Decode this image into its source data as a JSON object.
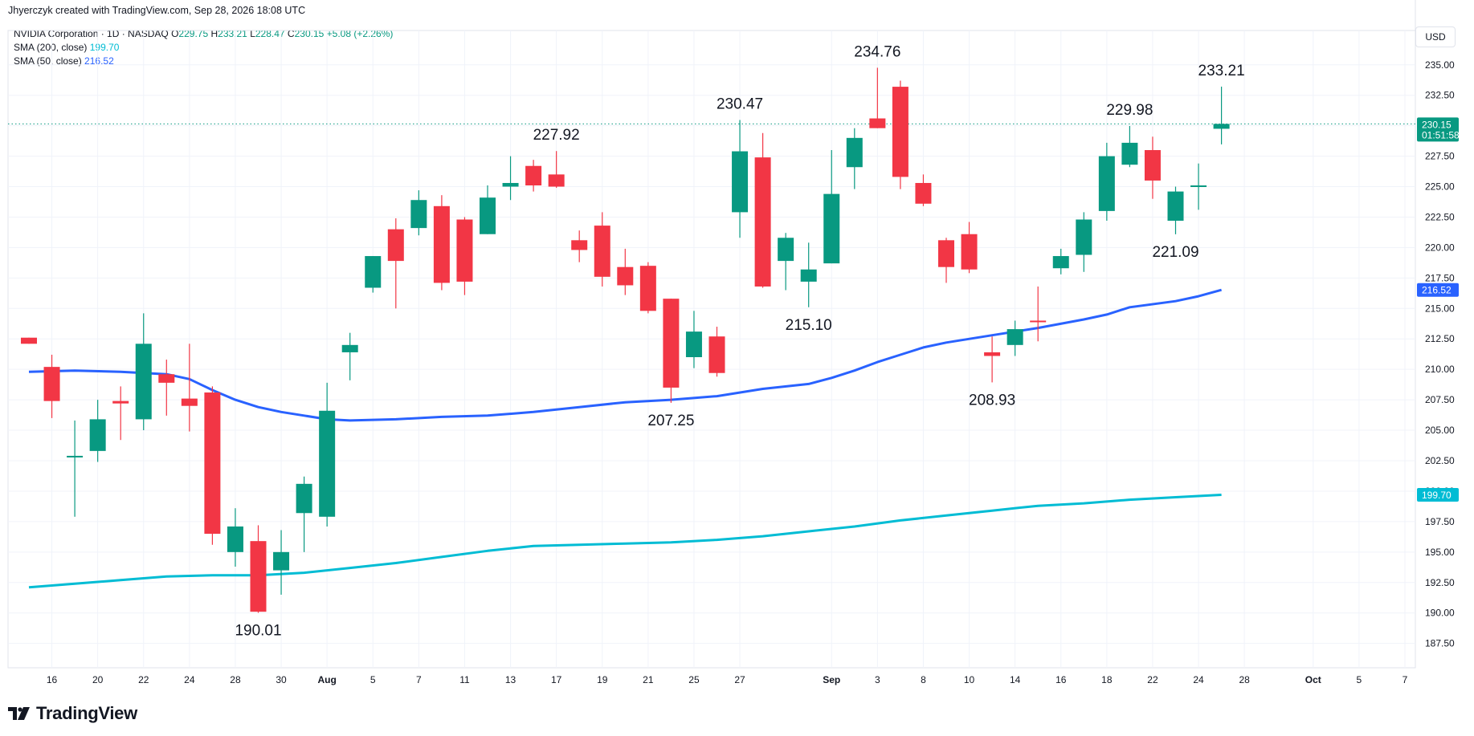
{
  "header": {
    "created_by": "Jhyerczyk created with TradingView.com, Sep 28, 2026 18:08 UTC"
  },
  "legend": {
    "symbol": "NVIDIA Corporation · 1D · NASDAQ",
    "o_label": "O",
    "o_value": "229.75",
    "h_label": "H",
    "h_value": "233.21",
    "l_label": "L",
    "l_value": "228.47",
    "c_label": "C",
    "c_value": "230.15",
    "change": "+5.08 (+2.26%)",
    "sma200_label": "SMA (200, close)",
    "sma200_value": "199.70",
    "sma50_label": "SMA (50, close)",
    "sma50_value": "216.52"
  },
  "currency": "USD",
  "footer": {
    "brand": "TradingView"
  },
  "colors": {
    "up": "#089981",
    "down": "#f23645",
    "sma50": "#2962ff",
    "sma200": "#00bcd4"
  },
  "chart_data": {
    "type": "candlestick",
    "ylim": [
      185.5,
      236.5
    ],
    "y_ticks": [
      "187.50",
      "190.00",
      "192.50",
      "195.00",
      "197.50",
      "200.00",
      "202.50",
      "205.00",
      "207.50",
      "210.00",
      "212.50",
      "215.00",
      "217.50",
      "220.00",
      "222.50",
      "225.00",
      "227.50",
      "230.00",
      "232.50",
      "235.00"
    ],
    "x_ticks": [
      {
        "label": "16",
        "i": 1
      },
      {
        "label": "20",
        "i": 3
      },
      {
        "label": "22",
        "i": 5
      },
      {
        "label": "24",
        "i": 7
      },
      {
        "label": "28",
        "i": 9
      },
      {
        "label": "30",
        "i": 11
      },
      {
        "label": "Aug",
        "i": 13
      },
      {
        "label": "5",
        "i": 15
      },
      {
        "label": "7",
        "i": 17
      },
      {
        "label": "11",
        "i": 19
      },
      {
        "label": "13",
        "i": 21
      },
      {
        "label": "17",
        "i": 23
      },
      {
        "label": "19",
        "i": 25
      },
      {
        "label": "21",
        "i": 27
      },
      {
        "label": "25",
        "i": 29
      },
      {
        "label": "27",
        "i": 31
      },
      {
        "label": "Sep",
        "i": 35
      },
      {
        "label": "3",
        "i": 37
      },
      {
        "label": "8",
        "i": 39
      },
      {
        "label": "10",
        "i": 41
      },
      {
        "label": "14",
        "i": 43
      },
      {
        "label": "16",
        "i": 45
      },
      {
        "label": "18",
        "i": 47
      },
      {
        "label": "22",
        "i": 49
      },
      {
        "label": "24",
        "i": 51
      },
      {
        "label": "28",
        "i": 53
      },
      {
        "label": "Oct",
        "i": 56
      },
      {
        "label": "5",
        "i": 58
      },
      {
        "label": "7",
        "i": 60
      }
    ],
    "candles": [
      {
        "i": 0,
        "o": 212.6,
        "h": 212.6,
        "l": 212.1,
        "c": 212.1
      },
      {
        "i": 1,
        "o": 210.2,
        "h": 211.2,
        "l": 206.0,
        "c": 207.4
      },
      {
        "i": 2,
        "o": 202.9,
        "h": 205.8,
        "l": 197.9,
        "c": 202.9
      },
      {
        "i": 3,
        "o": 203.3,
        "h": 207.5,
        "l": 202.4,
        "c": 205.9
      },
      {
        "i": 4,
        "o": 207.4,
        "h": 208.6,
        "l": 204.2,
        "c": 207.2
      },
      {
        "i": 5,
        "o": 205.9,
        "h": 214.6,
        "l": 205.0,
        "c": 212.1
      },
      {
        "i": 6,
        "o": 209.6,
        "h": 210.8,
        "l": 206.2,
        "c": 208.9
      },
      {
        "i": 7,
        "o": 207.6,
        "h": 212.1,
        "l": 204.9,
        "c": 207.0
      },
      {
        "i": 8,
        "o": 208.1,
        "h": 208.6,
        "l": 195.6,
        "c": 196.5
      },
      {
        "i": 9,
        "o": 195.0,
        "h": 198.6,
        "l": 193.8,
        "c": 197.1
      },
      {
        "i": 10,
        "o": 195.9,
        "h": 197.2,
        "l": 190.01,
        "c": 190.1
      },
      {
        "i": 11,
        "o": 193.5,
        "h": 196.8,
        "l": 191.5,
        "c": 195.0
      },
      {
        "i": 12,
        "o": 198.2,
        "h": 201.2,
        "l": 195.0,
        "c": 200.6
      },
      {
        "i": 13,
        "o": 197.9,
        "h": 208.9,
        "l": 197.1,
        "c": 206.6
      },
      {
        "i": 14,
        "o": 211.4,
        "h": 213.0,
        "l": 209.1,
        "c": 212.0
      },
      {
        "i": 15,
        "o": 216.7,
        "h": 219.3,
        "l": 216.3,
        "c": 219.3
      },
      {
        "i": 16,
        "o": 221.5,
        "h": 222.4,
        "l": 215.0,
        "c": 218.9
      },
      {
        "i": 17,
        "o": 221.6,
        "h": 224.7,
        "l": 221.0,
        "c": 223.9
      },
      {
        "i": 18,
        "o": 223.4,
        "h": 224.3,
        "l": 216.5,
        "c": 217.1
      },
      {
        "i": 19,
        "o": 222.3,
        "h": 222.5,
        "l": 216.1,
        "c": 217.2
      },
      {
        "i": 20,
        "o": 221.1,
        "h": 225.1,
        "l": 221.1,
        "c": 224.1
      },
      {
        "i": 21,
        "o": 225.0,
        "h": 227.5,
        "l": 223.9,
        "c": 225.3
      },
      {
        "i": 22,
        "o": 226.7,
        "h": 227.2,
        "l": 224.6,
        "c": 225.1
      },
      {
        "i": 23,
        "o": 226.0,
        "h": 227.92,
        "l": 224.9,
        "c": 225.0
      },
      {
        "i": 24,
        "o": 220.6,
        "h": 221.4,
        "l": 218.8,
        "c": 219.8
      },
      {
        "i": 25,
        "o": 221.8,
        "h": 222.9,
        "l": 216.8,
        "c": 217.6
      },
      {
        "i": 26,
        "o": 218.4,
        "h": 219.9,
        "l": 216.1,
        "c": 216.9
      },
      {
        "i": 27,
        "o": 218.5,
        "h": 218.8,
        "l": 214.6,
        "c": 214.8
      },
      {
        "i": 28,
        "o": 215.8,
        "h": 215.8,
        "l": 207.25,
        "c": 208.5
      },
      {
        "i": 29,
        "o": 211.0,
        "h": 214.8,
        "l": 210.1,
        "c": 213.1
      },
      {
        "i": 30,
        "o": 212.7,
        "h": 213.5,
        "l": 209.4,
        "c": 209.7
      },
      {
        "i": 31,
        "o": 222.9,
        "h": 230.47,
        "l": 220.8,
        "c": 227.9
      },
      {
        "i": 32,
        "o": 227.4,
        "h": 229.4,
        "l": 216.7,
        "c": 216.8
      },
      {
        "i": 33,
        "o": 218.9,
        "h": 221.2,
        "l": 216.5,
        "c": 220.8
      },
      {
        "i": 34,
        "o": 217.2,
        "h": 220.4,
        "l": 215.1,
        "c": 218.2
      },
      {
        "i": 35,
        "o": 218.7,
        "h": 228.0,
        "l": 218.7,
        "c": 224.4
      },
      {
        "i": 36,
        "o": 226.6,
        "h": 229.8,
        "l": 224.8,
        "c": 229.0
      },
      {
        "i": 37,
        "o": 230.6,
        "h": 234.76,
        "l": 229.8,
        "c": 229.8
      },
      {
        "i": 38,
        "o": 233.2,
        "h": 233.7,
        "l": 224.8,
        "c": 225.8
      },
      {
        "i": 39,
        "o": 225.3,
        "h": 226.0,
        "l": 223.4,
        "c": 223.6
      },
      {
        "i": 40,
        "o": 220.6,
        "h": 220.8,
        "l": 217.1,
        "c": 218.4
      },
      {
        "i": 41,
        "o": 221.1,
        "h": 222.1,
        "l": 217.9,
        "c": 218.2
      },
      {
        "i": 42,
        "o": 211.4,
        "h": 212.7,
        "l": 208.93,
        "c": 211.1
      },
      {
        "i": 43,
        "o": 212.0,
        "h": 214.0,
        "l": 211.1,
        "c": 213.3
      },
      {
        "i": 44,
        "o": 214.0,
        "h": 216.8,
        "l": 212.3,
        "c": 213.9
      },
      {
        "i": 45,
        "o": 218.3,
        "h": 219.9,
        "l": 217.8,
        "c": 219.3
      },
      {
        "i": 46,
        "o": 219.4,
        "h": 222.9,
        "l": 218.0,
        "c": 222.3
      },
      {
        "i": 47,
        "o": 223.0,
        "h": 228.6,
        "l": 222.2,
        "c": 227.5
      },
      {
        "i": 48,
        "o": 226.8,
        "h": 229.98,
        "l": 226.6,
        "c": 228.6
      },
      {
        "i": 49,
        "o": 228.0,
        "h": 229.1,
        "l": 224.0,
        "c": 225.5
      },
      {
        "i": 50,
        "o": 222.2,
        "h": 225.0,
        "l": 221.09,
        "c": 224.6
      },
      {
        "i": 51,
        "o": 225.0,
        "h": 226.9,
        "l": 223.1,
        "c": 225.1
      },
      {
        "i": 52,
        "o": 229.75,
        "h": 233.21,
        "l": 228.47,
        "c": 230.15
      }
    ],
    "sma50": [
      {
        "i": 0,
        "v": 209.8
      },
      {
        "i": 2,
        "v": 209.9
      },
      {
        "i": 4,
        "v": 209.8
      },
      {
        "i": 6,
        "v": 209.6
      },
      {
        "i": 7,
        "v": 209.2
      },
      {
        "i": 8,
        "v": 208.3
      },
      {
        "i": 9,
        "v": 207.5
      },
      {
        "i": 10,
        "v": 206.9
      },
      {
        "i": 11,
        "v": 206.5
      },
      {
        "i": 12,
        "v": 206.2
      },
      {
        "i": 13,
        "v": 205.9
      },
      {
        "i": 14,
        "v": 205.8
      },
      {
        "i": 16,
        "v": 205.9
      },
      {
        "i": 18,
        "v": 206.1
      },
      {
        "i": 20,
        "v": 206.2
      },
      {
        "i": 22,
        "v": 206.5
      },
      {
        "i": 24,
        "v": 206.9
      },
      {
        "i": 26,
        "v": 207.3
      },
      {
        "i": 28,
        "v": 207.5
      },
      {
        "i": 30,
        "v": 207.8
      },
      {
        "i": 32,
        "v": 208.4
      },
      {
        "i": 34,
        "v": 208.8
      },
      {
        "i": 35,
        "v": 209.3
      },
      {
        "i": 36,
        "v": 209.9
      },
      {
        "i": 37,
        "v": 210.6
      },
      {
        "i": 38,
        "v": 211.2
      },
      {
        "i": 39,
        "v": 211.8
      },
      {
        "i": 40,
        "v": 212.2
      },
      {
        "i": 42,
        "v": 212.8
      },
      {
        "i": 44,
        "v": 213.4
      },
      {
        "i": 46,
        "v": 214.1
      },
      {
        "i": 47,
        "v": 214.5
      },
      {
        "i": 48,
        "v": 215.1
      },
      {
        "i": 50,
        "v": 215.6
      },
      {
        "i": 51,
        "v": 216.0
      },
      {
        "i": 52,
        "v": 216.52
      }
    ],
    "sma200": [
      {
        "i": 0,
        "v": 192.1
      },
      {
        "i": 2,
        "v": 192.4
      },
      {
        "i": 4,
        "v": 192.7
      },
      {
        "i": 6,
        "v": 193.0
      },
      {
        "i": 8,
        "v": 193.1
      },
      {
        "i": 10,
        "v": 193.1
      },
      {
        "i": 12,
        "v": 193.3
      },
      {
        "i": 14,
        "v": 193.7
      },
      {
        "i": 16,
        "v": 194.1
      },
      {
        "i": 18,
        "v": 194.6
      },
      {
        "i": 20,
        "v": 195.1
      },
      {
        "i": 22,
        "v": 195.5
      },
      {
        "i": 24,
        "v": 195.6
      },
      {
        "i": 26,
        "v": 195.7
      },
      {
        "i": 28,
        "v": 195.8
      },
      {
        "i": 30,
        "v": 196.0
      },
      {
        "i": 32,
        "v": 196.3
      },
      {
        "i": 34,
        "v": 196.7
      },
      {
        "i": 36,
        "v": 197.1
      },
      {
        "i": 38,
        "v": 197.6
      },
      {
        "i": 40,
        "v": 198.0
      },
      {
        "i": 42,
        "v": 198.4
      },
      {
        "i": 44,
        "v": 198.8
      },
      {
        "i": 46,
        "v": 199.0
      },
      {
        "i": 48,
        "v": 199.3
      },
      {
        "i": 50,
        "v": 199.5
      },
      {
        "i": 52,
        "v": 199.7
      }
    ],
    "price_labels": [
      {
        "label": "230.15",
        "sub": "01:51:58",
        "value": 230.15,
        "color": "#089981"
      },
      {
        "label": "216.52",
        "value": 216.52,
        "color": "#2962ff"
      },
      {
        "label": "199.70",
        "value": 199.7,
        "color": "#00bcd4"
      }
    ],
    "annotations": [
      {
        "text": "190.01",
        "i": 10,
        "value": 190.01,
        "pos": "below"
      },
      {
        "text": "207.25",
        "i": 28,
        "value": 207.25,
        "pos": "below"
      },
      {
        "text": "227.92",
        "i": 23,
        "value": 227.92,
        "pos": "above"
      },
      {
        "text": "230.47",
        "i": 31,
        "value": 230.47,
        "pos": "above"
      },
      {
        "text": "215.10",
        "i": 34,
        "value": 215.1,
        "pos": "below"
      },
      {
        "text": "234.76",
        "i": 37,
        "value": 234.76,
        "pos": "above"
      },
      {
        "text": "208.93",
        "i": 42,
        "value": 208.93,
        "pos": "below"
      },
      {
        "text": "229.98",
        "i": 48,
        "value": 229.98,
        "pos": "above"
      },
      {
        "text": "221.09",
        "i": 50,
        "value": 221.09,
        "pos": "below"
      },
      {
        "text": "233.21",
        "i": 52,
        "value": 233.21,
        "pos": "above"
      }
    ]
  }
}
